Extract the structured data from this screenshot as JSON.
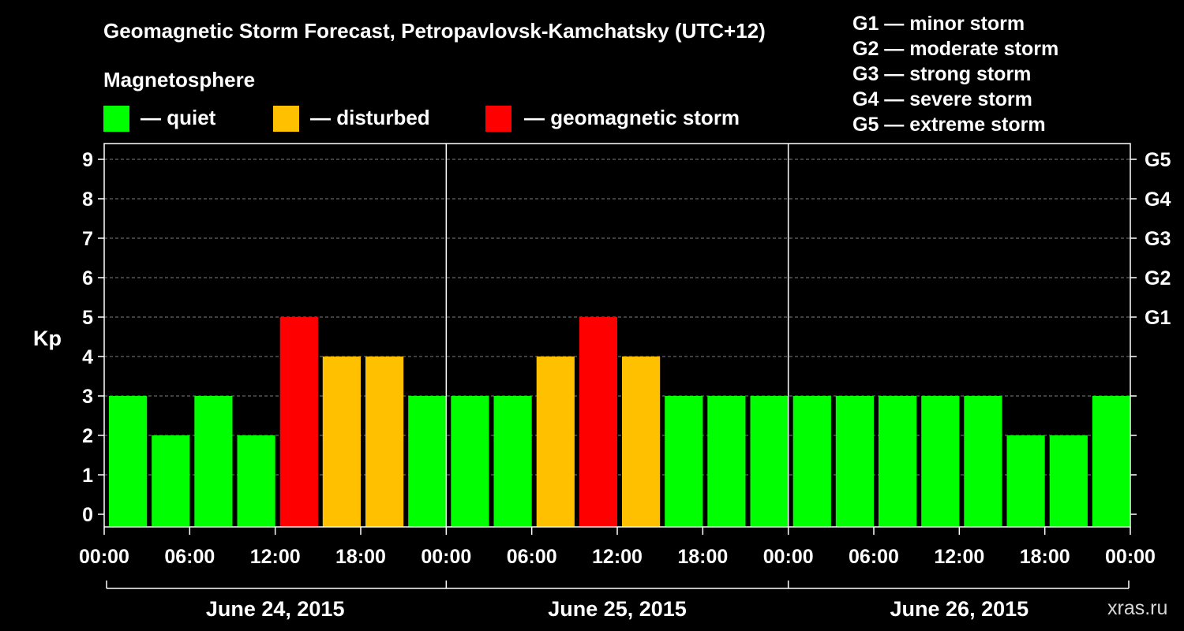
{
  "title": "Geomagnetic Storm Forecast, Petropavlovsk-Kamchatsky (UTC+12)",
  "legend": {
    "heading": "Magnetosphere",
    "items": [
      {
        "label": "— quiet",
        "color": "#00ff00"
      },
      {
        "label": "— disturbed",
        "color": "#ffc000"
      },
      {
        "label": "— geomagnetic storm",
        "color": "#ff0000"
      }
    ]
  },
  "storm_levels": [
    "G1 — minor storm",
    "G2 — moderate storm",
    "G3 — strong storm",
    "G4 — severe storm",
    "G5 — extreme storm"
  ],
  "credit": "xras.ru",
  "chart_data": {
    "type": "bar",
    "ylabel": "Kp",
    "ylim": [
      0,
      9
    ],
    "yticks": [
      "0",
      "1",
      "2",
      "3",
      "4",
      "5",
      "6",
      "7",
      "8",
      "9"
    ],
    "right_ticks": [
      {
        "kp": 5,
        "label": "G1"
      },
      {
        "kp": 6,
        "label": "G2"
      },
      {
        "kp": 7,
        "label": "G3"
      },
      {
        "kp": 8,
        "label": "G4"
      },
      {
        "kp": 9,
        "label": "G5"
      }
    ],
    "grid": "horizontal dashed",
    "xtick_labels": [
      "00:00",
      "06:00",
      "12:00",
      "18:00",
      "00:00",
      "06:00",
      "12:00",
      "18:00",
      "00:00",
      "06:00",
      "12:00",
      "18:00",
      "00:00"
    ],
    "days": [
      "June 24, 2015",
      "June 25, 2015",
      "June 26, 2015"
    ],
    "interval_hours": 3,
    "values": [
      3,
      2,
      3,
      2,
      5,
      4,
      4,
      3,
      3,
      3,
      4,
      5,
      4,
      3,
      3,
      3,
      3,
      3,
      3,
      3,
      3,
      2,
      2,
      3
    ],
    "colors": {
      "quiet": "#00ff00",
      "disturbed": "#ffc000",
      "storm": "#ff0000"
    }
  }
}
